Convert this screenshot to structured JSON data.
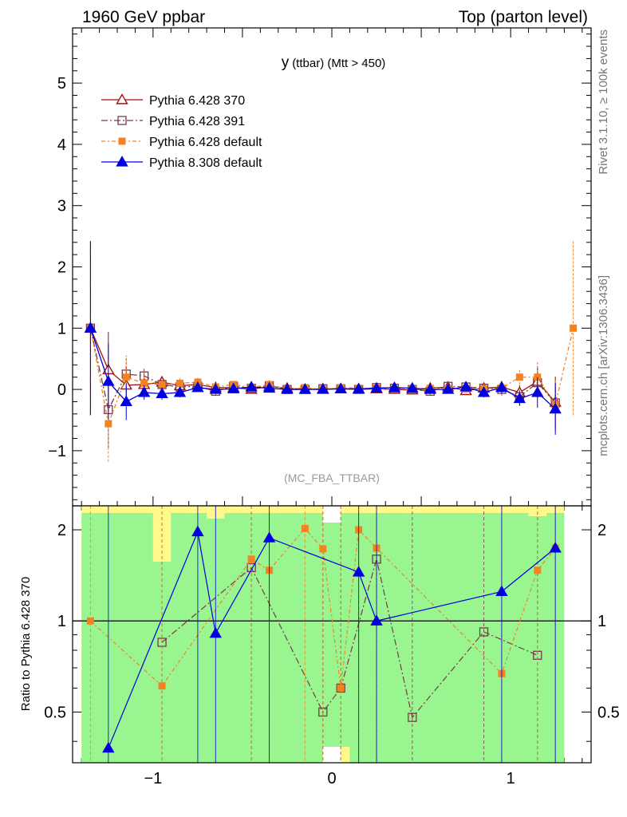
{
  "header": {
    "left": "1960 GeV ppbar",
    "right": "Top (parton level)",
    "side_top": "Rivet 3.1.10, ≥ 100k events",
    "side_bottom": "mcplots.cern.ch [arXiv:1306.3436]"
  },
  "chart_data": [
    {
      "type": "line",
      "title_main": "y",
      "title_sub": "(ttbar) (Mtt > 450)",
      "watermark": "(MC_FBA_TTBAR)",
      "xlim": [
        -1.45,
        1.45
      ],
      "ylim": [
        -1.9,
        5.9
      ],
      "xticks": [
        -1,
        0,
        1
      ],
      "xtick_labels": [
        "−1",
        "0",
        "1"
      ],
      "yticks": [
        -1,
        0,
        1,
        2,
        3,
        4,
        5
      ],
      "ytick_labels": [
        "−1",
        "0",
        "1",
        "2",
        "3",
        "4",
        "5"
      ],
      "legend_position": "top-left",
      "series": [
        {
          "name": "Pythia 6.428 370",
          "color": "#a01010",
          "marker": "open-triangle",
          "x": [
            -1.35,
            -1.25,
            -1.15,
            -1.05,
            -0.95,
            -0.85,
            -0.75,
            -0.65,
            -0.55,
            -0.45,
            -0.35,
            -0.25,
            -0.15,
            -0.05,
            0.05,
            0.15,
            0.25,
            0.35,
            0.45,
            0.55,
            0.65,
            0.75,
            0.85,
            0.95,
            1.05,
            1.15,
            1.25
          ],
          "y": [
            1.0,
            0.32,
            0.07,
            0.08,
            0.12,
            0.06,
            0.08,
            0.03,
            0.03,
            0.0,
            0.05,
            0.02,
            0.0,
            0.01,
            0.01,
            0.0,
            0.01,
            0.0,
            -0.01,
            0.02,
            0.04,
            -0.02,
            0.02,
            0.04,
            -0.05,
            0.13,
            -0.21
          ]
        },
        {
          "name": "Pythia 6.428 391",
          "color": "#7a3a4a",
          "marker": "open-square",
          "x": [
            -1.35,
            -1.25,
            -1.15,
            -1.05,
            -0.95,
            -0.85,
            -0.75,
            -0.65,
            -0.55,
            -0.45,
            -0.35,
            -0.25,
            -0.15,
            -0.05,
            0.05,
            0.15,
            0.25,
            0.35,
            0.45,
            0.55,
            0.65,
            0.75,
            0.85,
            0.95,
            1.05,
            1.15,
            1.25
          ],
          "y": [
            1.0,
            -0.33,
            0.25,
            0.22,
            0.08,
            0.04,
            0.05,
            -0.03,
            0.05,
            0.02,
            0.06,
            0.0,
            0.0,
            0.01,
            0.01,
            0.0,
            0.03,
            0.02,
            0.0,
            -0.03,
            0.05,
            0.04,
            0.02,
            0.0,
            -0.12,
            0.11,
            -0.22
          ]
        },
        {
          "name": "Pythia 6.428 default",
          "color": "#f58220",
          "marker": "filled-square",
          "x": [
            -1.35,
            -1.25,
            -1.15,
            -1.05,
            -0.95,
            -0.85,
            -0.75,
            -0.65,
            -0.55,
            -0.45,
            -0.35,
            -0.25,
            -0.15,
            -0.05,
            0.05,
            0.15,
            0.25,
            0.35,
            0.45,
            0.55,
            0.65,
            0.75,
            0.85,
            0.95,
            1.05,
            1.15,
            1.25,
            1.35
          ],
          "y": [
            1.0,
            -0.56,
            0.2,
            0.1,
            0.08,
            0.1,
            0.12,
            0.04,
            0.08,
            0.03,
            0.08,
            0.0,
            0.03,
            0.0,
            0.03,
            0.02,
            0.02,
            0.01,
            0.01,
            0.02,
            0.01,
            0.01,
            0.01,
            0.02,
            0.2,
            0.2,
            -0.25,
            1.0
          ]
        },
        {
          "name": "Pythia 8.308 default",
          "color": "#0000e0",
          "marker": "filled-triangle",
          "x": [
            -1.35,
            -1.25,
            -1.15,
            -1.05,
            -0.95,
            -0.85,
            -0.75,
            -0.65,
            -0.55,
            -0.45,
            -0.35,
            -0.25,
            -0.15,
            -0.05,
            0.05,
            0.15,
            0.25,
            0.35,
            0.45,
            0.55,
            0.65,
            0.75,
            0.85,
            0.95,
            1.05,
            1.15,
            1.25
          ],
          "y": [
            1.0,
            0.13,
            -0.2,
            -0.05,
            -0.07,
            -0.05,
            0.03,
            0.0,
            0.01,
            0.04,
            0.02,
            0.0,
            0.0,
            0.0,
            0.01,
            0.01,
            0.02,
            0.03,
            0.02,
            0.0,
            0.0,
            0.04,
            -0.05,
            0.03,
            -0.15,
            -0.05,
            -0.32
          ]
        }
      ]
    },
    {
      "type": "line",
      "ylabel": "Ratio to Pythia 6.428 370",
      "xlim": [
        -1.45,
        1.45
      ],
      "ylim": [
        0.34,
        2.4
      ],
      "yscale": "log",
      "yticks": [
        0.5,
        1,
        2
      ],
      "ytick_labels": [
        "0.5",
        "1",
        "2"
      ],
      "reference_line": 1,
      "band_x_range": [
        -1.4,
        1.3
      ],
      "series": [
        {
          "name": "Pythia 6.428 391",
          "color": "#7a3a4a",
          "x": [
            -0.95,
            -0.45,
            -0.05,
            0.05,
            0.25,
            0.45,
            0.85,
            1.15
          ],
          "y": [
            0.85,
            1.5,
            0.5,
            0.6,
            1.6,
            0.48,
            0.92,
            0.77
          ]
        },
        {
          "name": "Pythia 6.428 default",
          "color": "#f58220",
          "x": [
            -1.35,
            -0.95,
            -0.45,
            -0.35,
            -0.15,
            -0.05,
            0.05,
            0.15,
            0.25,
            0.95,
            1.15,
            1.25
          ],
          "y": [
            1.0,
            0.61,
            1.6,
            1.47,
            2.02,
            1.73,
            0.6,
            2.0,
            1.74,
            0.67,
            1.47,
            1.74
          ]
        },
        {
          "name": "Pythia 8.308 default",
          "color": "#0000e0",
          "x": [
            -1.25,
            -0.75,
            -0.65,
            -0.35,
            0.15,
            0.25,
            0.95,
            1.25
          ],
          "y": [
            0.38,
            1.97,
            0.91,
            1.88,
            1.45,
            1.0,
            1.25,
            1.74
          ]
        }
      ]
    }
  ]
}
